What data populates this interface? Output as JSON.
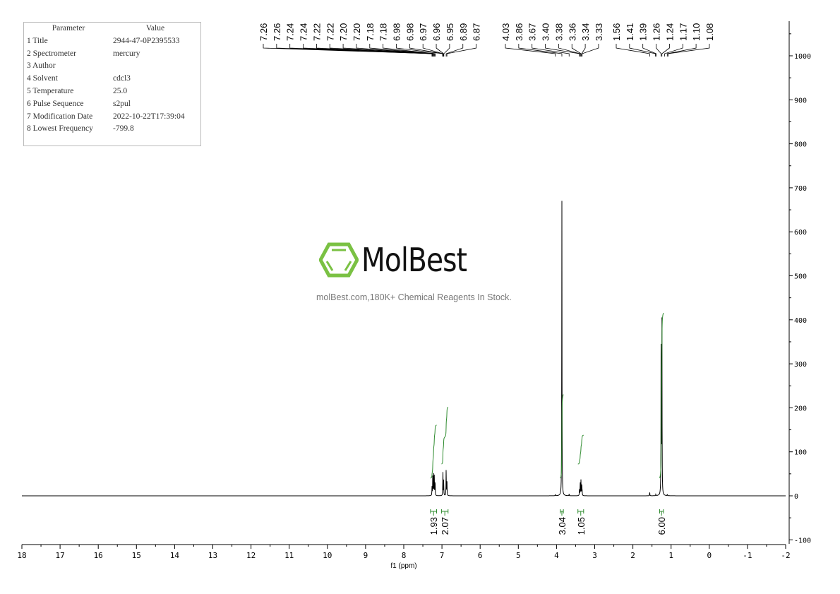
{
  "parameters": {
    "header": {
      "key": "Parameter",
      "value": "Value"
    },
    "rows": [
      {
        "key": "1 Title",
        "value": "2944-47-0P2395533"
      },
      {
        "key": "2 Spectrometer",
        "value": "mercury"
      },
      {
        "key": "3 Author",
        "value": ""
      },
      {
        "key": "4 Solvent",
        "value": "cdcl3"
      },
      {
        "key": "5 Temperature",
        "value": "25.0"
      },
      {
        "key": "6 Pulse Sequence",
        "value": "s2pul"
      },
      {
        "key": "7 Modification Date",
        "value": "2022-10-22T17:39:04"
      },
      {
        "key": "8 Lowest Frequency",
        "value": "-799.8"
      }
    ]
  },
  "watermark": {
    "logo": "MolBest",
    "tagline": "molBest.com,180K+ Chemical Reagents In Stock.",
    "logo_color": "#7ac143"
  },
  "chart_data": {
    "type": "line",
    "xlabel": "f1 (ppm)",
    "xlim": [
      18,
      -2
    ],
    "ylim": [
      -100,
      1050
    ],
    "x_ticks": [
      "18",
      "17",
      "16",
      "15",
      "14",
      "13",
      "12",
      "11",
      "10",
      "9",
      "8",
      "7",
      "6",
      "5",
      "4",
      "3",
      "2",
      "1",
      "0",
      "-1",
      "-2"
    ],
    "y_ticks": [
      "-100",
      "0",
      "100",
      "200",
      "300",
      "400",
      "500",
      "600",
      "700",
      "800",
      "900",
      "1000"
    ],
    "line_color": "#000000",
    "integral_color": "#2e8b2e",
    "peak_labels": [
      [
        "7.26",
        "7.26",
        "7.24",
        "7.24",
        "7.22",
        "7.22",
        "7.20",
        "7.20",
        "7.18",
        "7.18",
        "6.98",
        "6.98",
        "6.97",
        "6.96",
        "6.95",
        "6.89",
        "6.87"
      ],
      [
        "4.03",
        "3.86",
        "3.67",
        "3.40",
        "3.38",
        "3.36",
        "3.34",
        "3.33"
      ],
      [
        "1.56",
        "1.41",
        "1.39",
        "1.26",
        "1.24",
        "1.17",
        "1.10",
        "1.08"
      ]
    ],
    "peaks": [
      {
        "ppm": 7.26,
        "height": 20
      },
      {
        "ppm": 7.24,
        "height": 55
      },
      {
        "ppm": 7.22,
        "height": 50
      },
      {
        "ppm": 7.2,
        "height": 45
      },
      {
        "ppm": 7.18,
        "height": 35
      },
      {
        "ppm": 6.975,
        "height": 55
      },
      {
        "ppm": 6.955,
        "height": 35
      },
      {
        "ppm": 6.89,
        "height": 60
      },
      {
        "ppm": 6.87,
        "height": 40
      },
      {
        "ppm": 4.03,
        "height": 3
      },
      {
        "ppm": 3.86,
        "height": 680
      },
      {
        "ppm": 3.67,
        "height": 4
      },
      {
        "ppm": 3.4,
        "height": 15
      },
      {
        "ppm": 3.38,
        "height": 30
      },
      {
        "ppm": 3.36,
        "height": 35
      },
      {
        "ppm": 3.34,
        "height": 28
      },
      {
        "ppm": 3.33,
        "height": 12
      },
      {
        "ppm": 1.56,
        "height": 9
      },
      {
        "ppm": 1.4,
        "height": 3
      },
      {
        "ppm": 1.26,
        "height": 420
      },
      {
        "ppm": 1.24,
        "height": 400
      },
      {
        "ppm": 1.1,
        "height": 3
      }
    ],
    "integrals": [
      {
        "from": 7.3,
        "to": 7.14,
        "value": "1.93"
      },
      {
        "from": 7.01,
        "to": 6.84,
        "value": "2.07"
      },
      {
        "from": 3.9,
        "to": 3.82,
        "value": "3.04"
      },
      {
        "from": 3.44,
        "to": 3.29,
        "value": "1.05"
      },
      {
        "from": 1.3,
        "to": 1.2,
        "value": "6.00"
      }
    ]
  }
}
